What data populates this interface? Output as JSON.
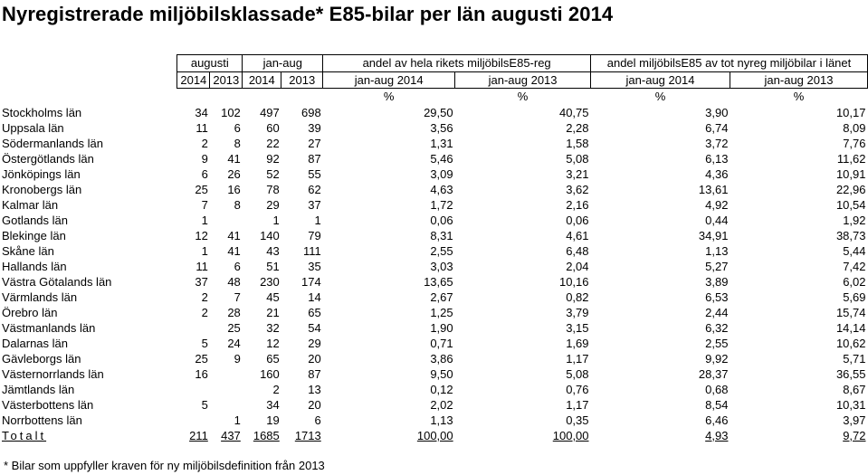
{
  "title": "Nyregistrerade miljöbilsklassade* E85-bilar per län augusti 2014",
  "header": {
    "group1": "augusti",
    "group2": "jan-aug",
    "group3": "andel av hela rikets miljöbilsE85-reg",
    "group4": "andel miljöbilsE85 av tot nyreg miljöbilar i länet",
    "sub": [
      "2014",
      "2013",
      "2014",
      "2013",
      "jan-aug 2014",
      "jan-aug 2013",
      "jan-aug 2014",
      "jan-aug 2013"
    ],
    "units": [
      "%",
      "%",
      "%",
      "%"
    ]
  },
  "rows": [
    {
      "lan": "Stockholms län",
      "v": [
        "34",
        "102",
        "497",
        "698",
        "29,50",
        "40,75",
        "3,90",
        "10,17"
      ]
    },
    {
      "lan": "Uppsala län",
      "v": [
        "11",
        "6",
        "60",
        "39",
        "3,56",
        "2,28",
        "6,74",
        "8,09"
      ]
    },
    {
      "lan": "Södermanlands län",
      "v": [
        "2",
        "8",
        "22",
        "27",
        "1,31",
        "1,58",
        "3,72",
        "7,76"
      ]
    },
    {
      "lan": "Östergötlands län",
      "v": [
        "9",
        "41",
        "92",
        "87",
        "5,46",
        "5,08",
        "6,13",
        "11,62"
      ]
    },
    {
      "lan": "Jönköpings län",
      "v": [
        "6",
        "26",
        "52",
        "55",
        "3,09",
        "3,21",
        "4,36",
        "10,91"
      ]
    },
    {
      "lan": "Kronobergs län",
      "v": [
        "25",
        "16",
        "78",
        "62",
        "4,63",
        "3,62",
        "13,61",
        "22,96"
      ]
    },
    {
      "lan": "Kalmar län",
      "v": [
        "7",
        "8",
        "29",
        "37",
        "1,72",
        "2,16",
        "4,92",
        "10,54"
      ]
    },
    {
      "lan": "Gotlands län",
      "v": [
        "1",
        "",
        "1",
        "1",
        "0,06",
        "0,06",
        "0,44",
        "1,92"
      ]
    },
    {
      "lan": "Blekinge län",
      "v": [
        "12",
        "41",
        "140",
        "79",
        "8,31",
        "4,61",
        "34,91",
        "38,73"
      ]
    },
    {
      "lan": "Skåne län",
      "v": [
        "1",
        "41",
        "43",
        "111",
        "2,55",
        "6,48",
        "1,13",
        "5,44"
      ]
    },
    {
      "lan": "Hallands län",
      "v": [
        "11",
        "6",
        "51",
        "35",
        "3,03",
        "2,04",
        "5,27",
        "7,42"
      ]
    },
    {
      "lan": "Västra Götalands län",
      "v": [
        "37",
        "48",
        "230",
        "174",
        "13,65",
        "10,16",
        "3,89",
        "6,02"
      ]
    },
    {
      "lan": "Värmlands län",
      "v": [
        "2",
        "7",
        "45",
        "14",
        "2,67",
        "0,82",
        "6,53",
        "5,69"
      ]
    },
    {
      "lan": "Örebro län",
      "v": [
        "2",
        "28",
        "21",
        "65",
        "1,25",
        "3,79",
        "2,44",
        "15,74"
      ]
    },
    {
      "lan": "Västmanlands län",
      "v": [
        "",
        "25",
        "32",
        "54",
        "1,90",
        "3,15",
        "6,32",
        "14,14"
      ]
    },
    {
      "lan": "Dalarnas län",
      "v": [
        "5",
        "24",
        "12",
        "29",
        "0,71",
        "1,69",
        "2,55",
        "10,62"
      ]
    },
    {
      "lan": "Gävleborgs län",
      "v": [
        "25",
        "9",
        "65",
        "20",
        "3,86",
        "1,17",
        "9,92",
        "5,71"
      ]
    },
    {
      "lan": "Västernorrlands län",
      "v": [
        "16",
        "",
        "160",
        "87",
        "9,50",
        "5,08",
        "28,37",
        "36,55"
      ]
    },
    {
      "lan": "Jämtlands län",
      "v": [
        "",
        "",
        "2",
        "13",
        "0,12",
        "0,76",
        "0,68",
        "8,67"
      ]
    },
    {
      "lan": "Västerbottens län",
      "v": [
        "5",
        "",
        "34",
        "20",
        "2,02",
        "1,17",
        "8,54",
        "10,31"
      ]
    },
    {
      "lan": "Norrbottens län",
      "v": [
        "",
        "1",
        "19",
        "6",
        "1,13",
        "0,35",
        "6,46",
        "3,97"
      ]
    }
  ],
  "total": {
    "lan": "Totalt",
    "v": [
      "211",
      "437",
      "1685",
      "1713",
      "100,00",
      "100,00",
      "4,93",
      "9,72"
    ]
  },
  "footnote": "* Bilar som uppfyller kraven för ny miljöbilsdefinition från 2013"
}
